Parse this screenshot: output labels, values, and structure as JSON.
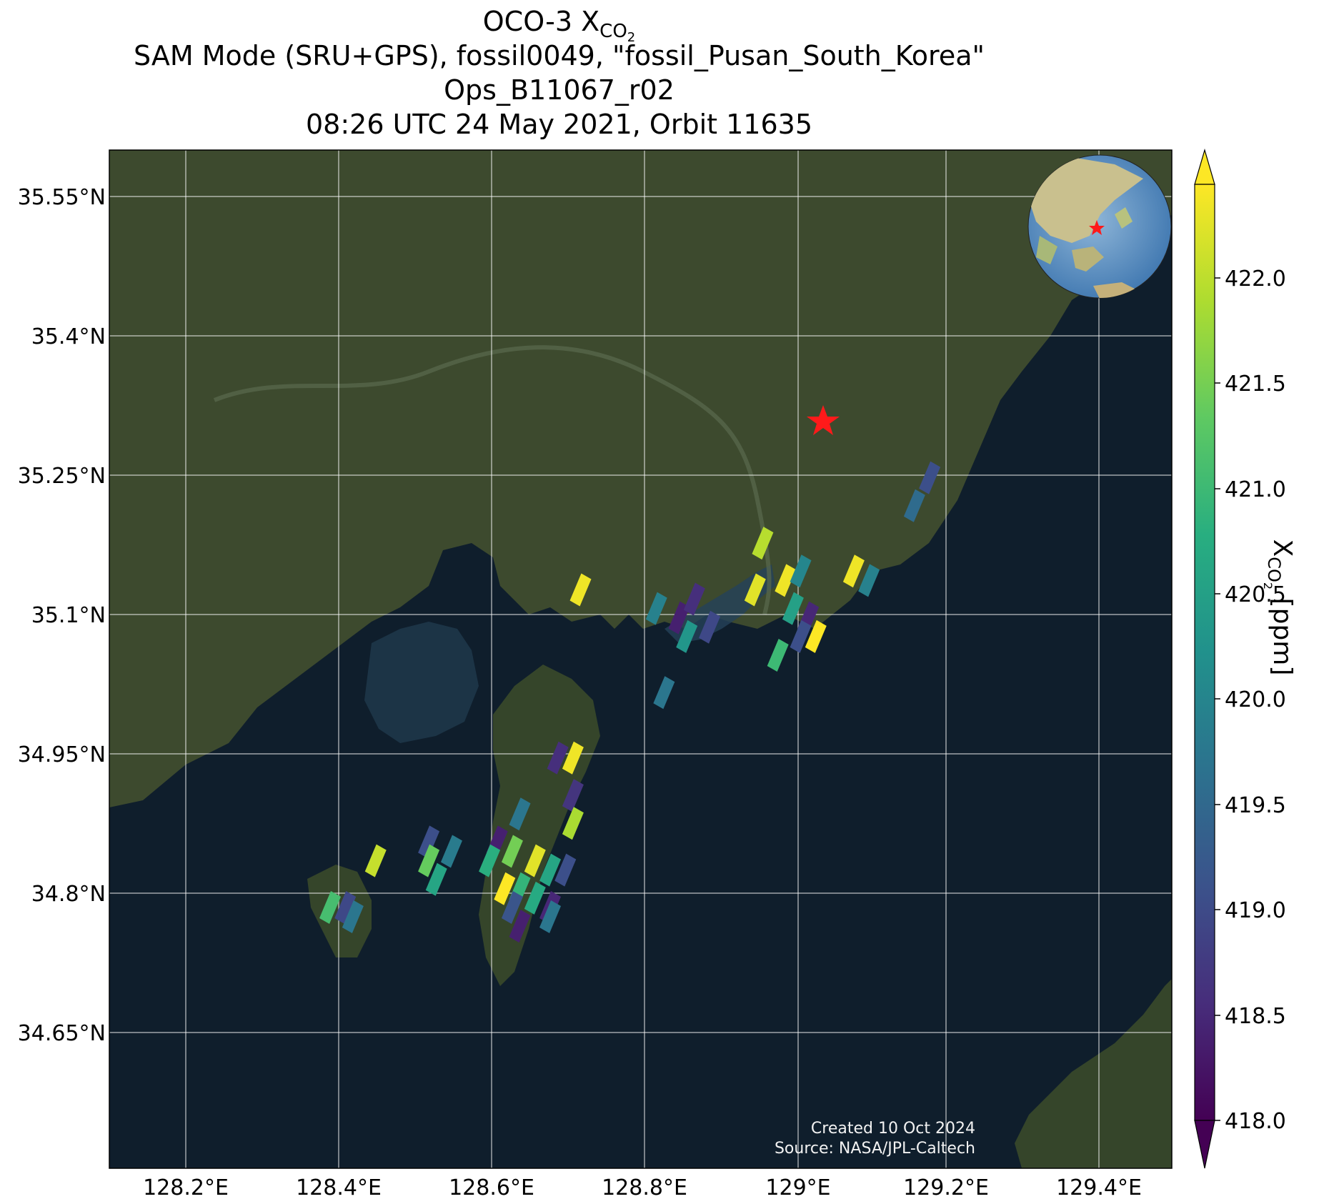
{
  "title": {
    "line1_prefix": "OCO-3 X",
    "line1_sub": "CO",
    "line1_subsub": "2",
    "line2": "SAM Mode (SRU+GPS), fossil0049, \"fossil_Pusan_South_Korea\"",
    "line3": "Ops_B11067_r02",
    "line4": "08:26 UTC 24 May 2021, Orbit 11635"
  },
  "credits": {
    "created": "Created 10 Oct 2024",
    "source": "Source: NASA/JPL-Caltech"
  },
  "map": {
    "projection": "PlateCarree",
    "lon_range": [
      128.1,
      129.5
    ],
    "lat_range": [
      34.52,
      35.61
    ],
    "lon_ticks": [
      "128.2°E",
      "128.4°E",
      "128.6°E",
      "128.8°E",
      "129°E",
      "129.2°E",
      "129.4°E"
    ],
    "lat_ticks": [
      "35.55°N",
      "35.4°N",
      "35.25°N",
      "35.1°N",
      "34.95°N",
      "34.8°N",
      "34.65°N"
    ],
    "grid": true,
    "target": {
      "name": "fossil_Pusan_South_Korea",
      "lon": 129.04,
      "lat": 35.31,
      "marker": "red-star"
    },
    "inset": "orthographic globe centered on East Asia, target marked with red star",
    "colors": {
      "land": "#3d4a2e",
      "sea": "#0f1e2c",
      "target": "#ff0000"
    }
  },
  "colorbar": {
    "label_prefix": "X",
    "label_sub": "CO",
    "label_subsub": "2",
    "label_suffix": " [ppm]",
    "range": [
      417.8,
      422.4
    ],
    "ticks": [
      "418.0",
      "418.5",
      "419.0",
      "419.5",
      "420.0",
      "420.5",
      "421.0",
      "421.5",
      "422.0"
    ],
    "colormap": "viridis",
    "extend": "both"
  },
  "chart_data": {
    "type": "scatter",
    "variable": "XCO2",
    "units": "ppm",
    "points": [
      {
        "lon": 128.72,
        "lat": 35.14,
        "xco2": 422.3
      },
      {
        "lon": 128.82,
        "lat": 35.12,
        "xco2": 419.8
      },
      {
        "lon": 128.85,
        "lat": 35.11,
        "xco2": 418.2
      },
      {
        "lon": 128.87,
        "lat": 35.13,
        "xco2": 418.4
      },
      {
        "lon": 128.86,
        "lat": 35.09,
        "xco2": 420.2
      },
      {
        "lon": 128.89,
        "lat": 35.1,
        "xco2": 418.8
      },
      {
        "lon": 128.83,
        "lat": 35.03,
        "xco2": 419.6
      },
      {
        "lon": 128.95,
        "lat": 35.14,
        "xco2": 422.2
      },
      {
        "lon": 128.96,
        "lat": 35.19,
        "xco2": 421.9
      },
      {
        "lon": 128.99,
        "lat": 35.15,
        "xco2": 422.3
      },
      {
        "lon": 129.01,
        "lat": 35.16,
        "xco2": 419.9
      },
      {
        "lon": 129.0,
        "lat": 35.12,
        "xco2": 420.4
      },
      {
        "lon": 129.02,
        "lat": 35.11,
        "xco2": 418.3
      },
      {
        "lon": 129.01,
        "lat": 35.09,
        "xco2": 418.9
      },
      {
        "lon": 129.03,
        "lat": 35.09,
        "xco2": 422.4
      },
      {
        "lon": 128.98,
        "lat": 35.07,
        "xco2": 420.9
      },
      {
        "lon": 129.08,
        "lat": 35.16,
        "xco2": 422.3
      },
      {
        "lon": 129.1,
        "lat": 35.15,
        "xco2": 419.8
      },
      {
        "lon": 129.18,
        "lat": 35.26,
        "xco2": 418.9
      },
      {
        "lon": 129.16,
        "lat": 35.23,
        "xco2": 419.4
      },
      {
        "lon": 128.69,
        "lat": 34.96,
        "xco2": 418.4
      },
      {
        "lon": 128.71,
        "lat": 34.96,
        "xco2": 422.3
      },
      {
        "lon": 128.71,
        "lat": 34.92,
        "xco2": 418.5
      },
      {
        "lon": 128.71,
        "lat": 34.89,
        "xco2": 421.8
      },
      {
        "lon": 128.64,
        "lat": 34.9,
        "xco2": 419.6
      },
      {
        "lon": 128.61,
        "lat": 34.87,
        "xco2": 418.2
      },
      {
        "lon": 128.63,
        "lat": 34.86,
        "xco2": 421.4
      },
      {
        "lon": 128.6,
        "lat": 34.85,
        "xco2": 420.7
      },
      {
        "lon": 128.66,
        "lat": 34.85,
        "xco2": 422.2
      },
      {
        "lon": 128.68,
        "lat": 34.84,
        "xco2": 420.5
      },
      {
        "lon": 128.7,
        "lat": 34.84,
        "xco2": 418.9
      },
      {
        "lon": 128.62,
        "lat": 34.82,
        "xco2": 422.4
      },
      {
        "lon": 128.64,
        "lat": 34.82,
        "xco2": 420.8
      },
      {
        "lon": 128.63,
        "lat": 34.8,
        "xco2": 419.0
      },
      {
        "lon": 128.66,
        "lat": 34.81,
        "xco2": 420.6
      },
      {
        "lon": 128.68,
        "lat": 34.8,
        "xco2": 418.3
      },
      {
        "lon": 128.68,
        "lat": 34.79,
        "xco2": 419.6
      },
      {
        "lon": 128.64,
        "lat": 34.78,
        "xco2": 418.2
      },
      {
        "lon": 128.52,
        "lat": 34.87,
        "xco2": 418.9
      },
      {
        "lon": 128.55,
        "lat": 34.86,
        "xco2": 419.7
      },
      {
        "lon": 128.52,
        "lat": 34.85,
        "xco2": 421.3
      },
      {
        "lon": 128.53,
        "lat": 34.83,
        "xco2": 420.5
      },
      {
        "lon": 128.45,
        "lat": 34.85,
        "xco2": 422.0
      },
      {
        "lon": 128.41,
        "lat": 34.8,
        "xco2": 418.8
      },
      {
        "lon": 128.39,
        "lat": 34.8,
        "xco2": 421.0
      },
      {
        "lon": 128.42,
        "lat": 34.79,
        "xco2": 419.6
      }
    ]
  }
}
